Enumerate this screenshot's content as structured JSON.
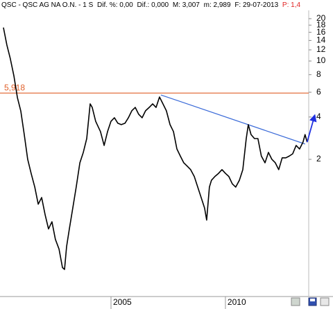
{
  "header": [
    "QSC - QSC AG NA O.N. - 1 S",
    "Dif. %: 0,00",
    "Dif.: 0,000",
    "M: 3,007",
    "m: 2,989",
    "F: 29-07-2013",
    "P: 1,4"
  ],
  "chart_data": {
    "type": "line",
    "log_scale": true,
    "grid": false,
    "x": [
      2000.3,
      2000.45,
      2000.6,
      2000.76,
      2000.91,
      2001.06,
      2001.21,
      2001.36,
      2001.51,
      2001.67,
      2001.82,
      2001.97,
      2002.12,
      2002.27,
      2002.42,
      2002.57,
      2002.73,
      2002.88,
      2002.97,
      2003.06,
      2003.18,
      2003.33,
      2003.48,
      2003.64,
      2003.79,
      2003.94,
      2004.09,
      2004.18,
      2004.33,
      2004.54,
      2004.7,
      2004.85,
      2005.0,
      2005.15,
      2005.3,
      2005.45,
      2005.61,
      2005.76,
      2005.91,
      2006.06,
      2006.21,
      2006.36,
      2006.51,
      2006.67,
      2006.82,
      2006.97,
      2007.12,
      2007.27,
      2007.42,
      2007.58,
      2007.73,
      2007.88,
      2008.03,
      2008.18,
      2008.33,
      2008.48,
      2008.64,
      2008.79,
      2008.94,
      2009.09,
      2009.18,
      2009.3,
      2009.39,
      2009.54,
      2009.7,
      2009.85,
      2010.0,
      2010.15,
      2010.3,
      2010.45,
      2010.61,
      2010.76,
      2010.91,
      2011.0,
      2011.12,
      2011.27,
      2011.42,
      2011.57,
      2011.73,
      2011.88,
      2012.03,
      2012.18,
      2012.33,
      2012.48,
      2012.64,
      2012.79,
      2012.94,
      2013.09,
      2013.24,
      2013.39,
      2013.48,
      2013.57
    ],
    "series": [
      {
        "color": "#000000",
        "values": [
          17.3,
          13.0,
          10.4,
          7.8,
          5.5,
          4.4,
          3.0,
          2.0,
          1.59,
          1.27,
          0.96,
          1.07,
          0.81,
          0.64,
          0.72,
          0.54,
          0.46,
          0.34,
          0.33,
          0.48,
          0.64,
          0.9,
          1.27,
          1.89,
          2.24,
          2.81,
          4.96,
          4.68,
          3.73,
          3.15,
          2.51,
          3.15,
          3.73,
          3.95,
          3.61,
          3.53,
          3.61,
          3.95,
          4.43,
          4.68,
          4.18,
          3.95,
          4.43,
          4.68,
          4.96,
          4.68,
          5.55,
          4.96,
          4.43,
          3.53,
          3.15,
          2.37,
          2.11,
          1.89,
          1.79,
          1.69,
          1.51,
          1.27,
          1.07,
          0.9,
          0.74,
          1.27,
          1.42,
          1.51,
          1.59,
          1.69,
          1.59,
          1.51,
          1.34,
          1.27,
          1.42,
          1.69,
          2.81,
          3.53,
          3.0,
          2.81,
          2.81,
          2.11,
          1.89,
          2.24,
          2.0,
          1.89,
          1.69,
          2.05,
          2.05,
          2.11,
          2.19,
          2.51,
          2.37,
          2.65,
          3.0,
          2.65
        ]
      }
    ],
    "xlim": [
      2000.15,
      2013.64
    ],
    "xticks": [
      2005,
      2010
    ],
    "ylim": [
      0.207,
      22.9
    ],
    "yticks": [
      20,
      18,
      16,
      14,
      12,
      10,
      8,
      6,
      4,
      2
    ],
    "hline": {
      "value": 5.918,
      "label": "5,918",
      "color": "#e0602a"
    },
    "trendline": {
      "x": [
        2007.18,
        2013.48
      ],
      "values": [
        5.74,
        2.57
      ],
      "color": "#3a6ad8"
    },
    "arrow": {
      "x": [
        2013.57,
        2013.9
      ],
      "values": [
        2.65,
        4.1
      ],
      "color": "#2030e0"
    }
  }
}
